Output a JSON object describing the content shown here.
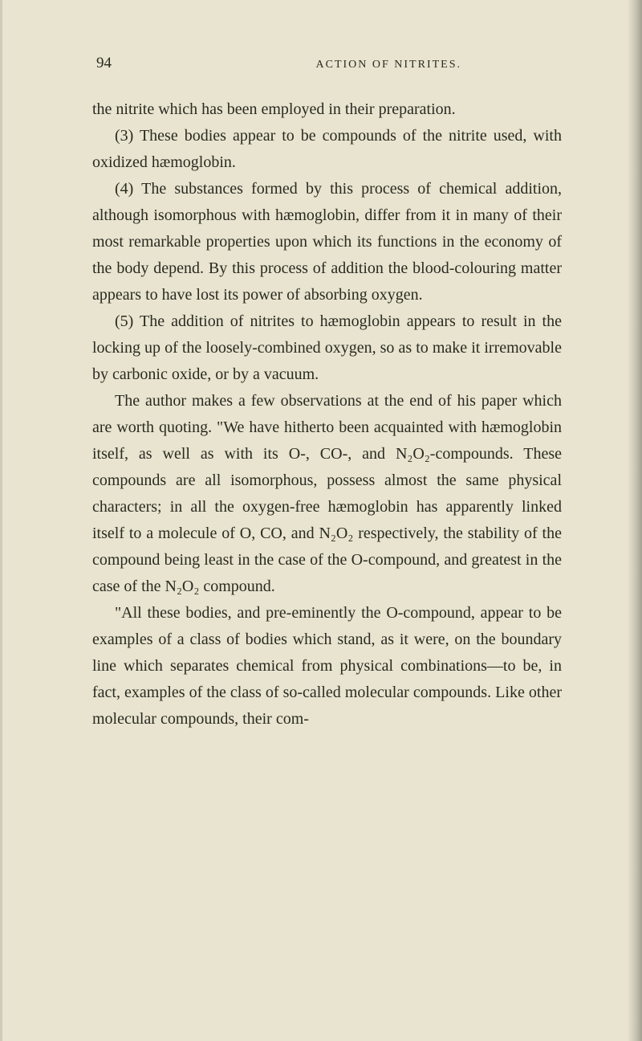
{
  "page": {
    "number": "94",
    "running_title": "ACTION OF NITRITES.",
    "background_color": "#e8e4d0",
    "text_color": "#2a2a20",
    "body_fontsize": 20,
    "header_fontsize": 14,
    "line_height": 1.65
  },
  "paragraphs": [
    {
      "text": "the nitrite which has been employed in their preparation.",
      "indent": false
    },
    {
      "text": "(3) These bodies appear to be compounds of the nitrite used, with oxidized hæmoglobin.",
      "indent": true
    },
    {
      "text": "(4) The substances formed by this process of chemical addition, although isomorphous with hæmoglobin, differ from it in many of their most remarkable properties upon which its functions in the economy of the body depend. By this process of addition the blood-colouring matter appears to have lost its power of absorbing oxygen.",
      "indent": true
    },
    {
      "text": "(5) The addition of nitrites to hæmoglobin appears to result in the locking up of the loosely-combined oxygen, so as to make it irremovable by carbonic oxide, or by a vacuum.",
      "indent": true
    },
    {
      "text": "The author makes a few observations at the end of his paper which are worth quoting. \"We have hitherto been acquainted with hæmoglobin itself, as well as with its O-, CO-, and N₂O₂-compounds. These compounds are all isomorphous, possess almost the same physical characters; in all the oxygen-free hæmoglobin has apparently linked itself to a molecule of O, CO, and N₂O₂ respectively, the stability of the compound being least in the case of the O-compound, and greatest in the case of the N₂O₂ compound.",
      "indent": true
    },
    {
      "text": "\"All these bodies, and pre-eminently the O-compound, appear to be examples of a class of bodies which stand, as it were, on the boundary line which separates chemical from physical combinations—to be, in fact, examples of the class of so-called molecular compounds. Like other molecular compounds, their com-",
      "indent": true
    }
  ]
}
